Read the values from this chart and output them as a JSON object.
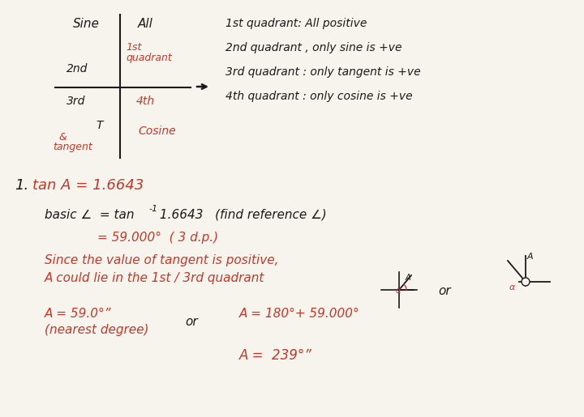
{
  "bg_color": "#f7f4ee",
  "black_color": "#1a1a1a",
  "red_color": "#c0392b",
  "quadrant_rules": [
    "1st quadrant: All positive",
    "2nd quadrant , only sine is +ve",
    "3rd quadrant : only tangent is +ve",
    "4th quadrant : only cosine is +ve"
  ]
}
